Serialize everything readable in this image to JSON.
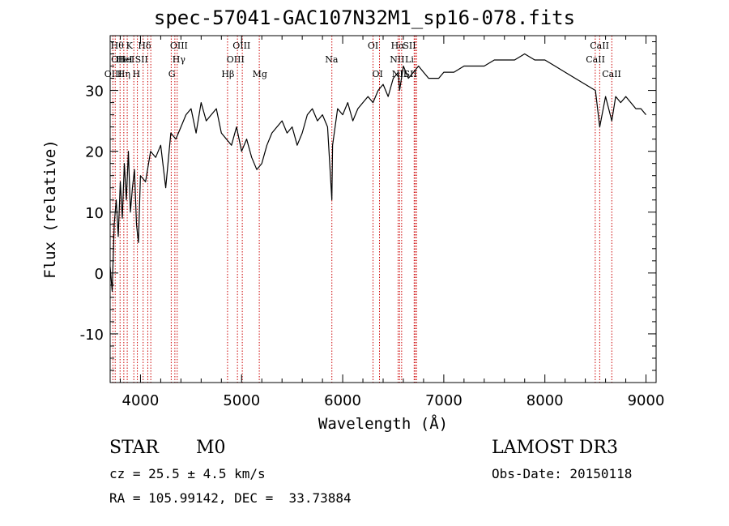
{
  "chart_data": {
    "type": "line",
    "title": "spec-57041-GAC107N32M1_sp16-078.fits",
    "xlabel": "Wavelength (Å)",
    "ylabel": "Flux (relative)",
    "xlim": [
      3700,
      9100
    ],
    "ylim": [
      -18,
      39
    ],
    "xticks": [
      4000,
      5000,
      6000,
      7000,
      8000,
      9000
    ],
    "yticks": [
      -10,
      0,
      10,
      20,
      30
    ],
    "series": [
      {
        "x": [
          3700,
          3720,
          3740,
          3760,
          3780,
          3800,
          3820,
          3840,
          3860,
          3880,
          3900,
          3920,
          3940,
          3960,
          3980,
          4000,
          4050,
          4100,
          4150,
          4200,
          4250,
          4300,
          4350,
          4400,
          4450,
          4500,
          4550,
          4600,
          4650,
          4700,
          4750,
          4800,
          4850,
          4900,
          4950,
          5000,
          5050,
          5100,
          5150,
          5200,
          5250,
          5300,
          5350,
          5400,
          5450,
          5500,
          5550,
          5600,
          5650,
          5700,
          5750,
          5800,
          5850,
          5893,
          5900,
          5950,
          6000,
          6050,
          6100,
          6150,
          6200,
          6250,
          6300,
          6350,
          6400,
          6450,
          6500,
          6550,
          6563,
          6600,
          6650,
          6700,
          6750,
          6800,
          6850,
          6900,
          6950,
          7000,
          7100,
          7200,
          7300,
          7400,
          7500,
          7600,
          7700,
          7800,
          7900,
          8000,
          8100,
          8200,
          8300,
          8400,
          8500,
          8542,
          8600,
          8662,
          8700,
          8750,
          8800,
          8850,
          8900,
          8950,
          9000
        ],
        "y": [
          1,
          -3,
          8,
          12,
          6,
          15,
          9,
          18,
          12,
          20,
          10,
          14,
          17,
          8,
          5,
          16,
          15,
          20,
          19,
          21,
          14,
          23,
          22,
          24,
          26,
          27,
          23,
          28,
          25,
          26,
          27,
          23,
          22,
          21,
          24,
          20,
          22,
          19,
          17,
          18,
          21,
          23,
          24,
          25,
          23,
          24,
          21,
          23,
          26,
          27,
          25,
          26,
          24,
          12,
          21,
          27,
          26,
          28,
          25,
          27,
          28,
          29,
          28,
          30,
          31,
          29,
          32,
          33,
          30,
          34,
          32,
          33,
          34,
          33,
          32,
          32,
          32,
          33,
          33,
          34,
          34,
          34,
          35,
          35,
          35,
          36,
          35,
          35,
          34,
          33,
          32,
          31,
          30,
          24,
          29,
          25,
          29,
          28,
          29,
          28,
          27,
          27,
          26
        ]
      }
    ],
    "lines": [
      {
        "x": 3727,
        "labels": [
          "OII"
        ],
        "label_x": 3780,
        "row": 1
      },
      {
        "x": 3750,
        "labels": [
          "Hθ"
        ],
        "label_x": 3770,
        "row": 0
      },
      {
        "x": 3798,
        "labels": [
          "Hη"
        ],
        "label_x": 3835,
        "row": 2
      },
      {
        "x": 3835,
        "labels": [
          "OIII"
        ],
        "label_x": 3730,
        "row": 2
      },
      {
        "x": 3869,
        "labels": [
          "HeI"
        ],
        "label_x": 3860,
        "row": 1
      },
      {
        "x": 3934,
        "labels": [
          "K"
        ],
        "label_x": 3890,
        "row": 0
      },
      {
        "x": 3969,
        "labels": [
          "H"
        ],
        "label_x": 3960,
        "row": 2
      },
      {
        "x": 4026,
        "labels": [
          "HeI"
        ],
        "label_x": 3840,
        "row": 1
      },
      {
        "x": 4072,
        "labels": [
          "SII"
        ],
        "label_x": 4010,
        "row": 1
      },
      {
        "x": 4102,
        "labels": [
          "Hδ"
        ],
        "label_x": 4040,
        "row": 0
      },
      {
        "x": 4304,
        "labels": [
          "G"
        ],
        "label_x": 4310,
        "row": 2
      },
      {
        "x": 4340,
        "labels": [
          "Hγ"
        ],
        "label_x": 4380,
        "row": 1
      },
      {
        "x": 4363,
        "labels": [
          "OIII"
        ],
        "label_x": 4380,
        "row": 0
      },
      {
        "x": 4861,
        "labels": [
          "Hβ"
        ],
        "label_x": 4865,
        "row": 2
      },
      {
        "x": 4959,
        "labels": [
          "OIII"
        ],
        "label_x": 4940,
        "row": 1
      },
      {
        "x": 5007,
        "labels": [
          "OIII"
        ],
        "label_x": 5000,
        "row": 0
      },
      {
        "x": 5175,
        "labels": [
          "Mg"
        ],
        "label_x": 5180,
        "row": 2
      },
      {
        "x": 5893,
        "labels": [
          "Na"
        ],
        "label_x": 5890,
        "row": 1
      },
      {
        "x": 6300,
        "labels": [
          "OI"
        ],
        "label_x": 6300,
        "row": 0
      },
      {
        "x": 6364,
        "labels": [
          "OI"
        ],
        "label_x": 6345,
        "row": 2
      },
      {
        "x": 6548,
        "labels": [
          "NII"
        ],
        "label_x": 6540,
        "row": 1
      },
      {
        "x": 6563,
        "labels": [
          "Hα"
        ],
        "label_x": 6545,
        "row": 0
      },
      {
        "x": 6583,
        "labels": [
          "NII"
        ],
        "label_x": 6560,
        "row": 2
      },
      {
        "x": 6707,
        "labels": [
          "Li"
        ],
        "label_x": 6660,
        "row": 1
      },
      {
        "x": 6717,
        "labels": [
          "SII"
        ],
        "label_x": 6660,
        "row": 0
      },
      {
        "x": 6731,
        "labels": [
          "SII"
        ],
        "label_x": 6670,
        "row": 2
      },
      {
        "x": 8498,
        "labels": [
          "CaII"
        ],
        "label_x": 8500,
        "row": 1
      },
      {
        "x": 8542,
        "labels": [
          "CaII"
        ],
        "label_x": 8540,
        "row": 0
      },
      {
        "x": 8662,
        "labels": [
          "CaII"
        ],
        "label_x": 8660,
        "row": 2
      }
    ],
    "grid": false
  },
  "info": {
    "class_label": "STAR",
    "subclass_label": "M0",
    "survey": "LAMOST DR3",
    "cz_text": "cz = 25.5 ± 4.5 km/s",
    "obs_date": "Obs-Date: 20150118",
    "coords": "RA = 105.99142, DEC =  33.73884"
  },
  "colors": {
    "spectrum": "#000000",
    "line_marker": "#cc0000",
    "background": "#ffffff"
  }
}
